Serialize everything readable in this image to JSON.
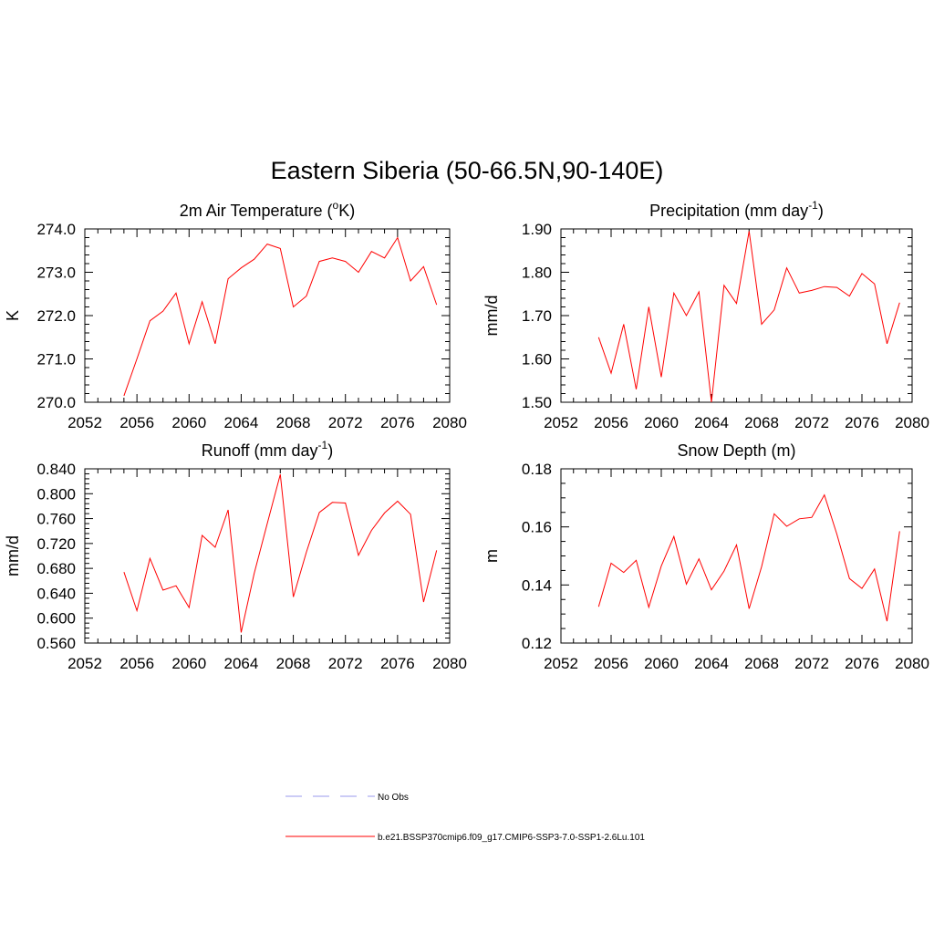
{
  "main_title": "Eastern Siberia (50-66.5N,90-140E)",
  "legend": {
    "items": [
      {
        "label": "No Obs",
        "color": "#9999ee",
        "style": "dashed"
      },
      {
        "label": "b.e21.BSSP370cmip6.f09_g17.CMIP6-SSP3-7.0-SSP1-2.6Lu.101",
        "color": "#ff0000",
        "style": "solid"
      }
    ]
  },
  "chart_data": [
    {
      "type": "line",
      "title": "2m Air Temperature (°K)",
      "ylabel": "K",
      "xlim": [
        2052,
        2080
      ],
      "ylim": [
        270.0,
        274.0
      ],
      "xticks": [
        "2052",
        "2056",
        "2060",
        "2064",
        "2068",
        "2072",
        "2076",
        "2080"
      ],
      "xtick_values": [
        2052,
        2056,
        2060,
        2064,
        2068,
        2072,
        2076,
        2080
      ],
      "yticks": [
        "270.0",
        "271.0",
        "272.0",
        "273.0",
        "274.0"
      ],
      "ytick_values": [
        270,
        271,
        272,
        273,
        274
      ],
      "ymajor_step": 1.0,
      "yminor_step": 0.2,
      "x": [
        2055,
        2056,
        2057,
        2058,
        2059,
        2060,
        2061,
        2062,
        2063,
        2064,
        2065,
        2066,
        2067,
        2068,
        2069,
        2070,
        2071,
        2072,
        2073,
        2074,
        2075,
        2076,
        2077,
        2078,
        2079
      ],
      "series": [
        {
          "color": "#ff0000",
          "values": [
            270.15,
            271.0,
            271.88,
            272.1,
            272.52,
            271.35,
            272.32,
            271.35,
            272.85,
            273.1,
            273.3,
            273.65,
            273.55,
            272.2,
            272.45,
            273.25,
            273.33,
            273.25,
            273.0,
            273.48,
            273.33,
            273.8,
            272.8,
            273.13,
            272.25
          ]
        }
      ]
    },
    {
      "type": "line",
      "title": "Precipitation (mm day-1)",
      "ylabel": "mm/d",
      "xlim": [
        2052,
        2080
      ],
      "ylim": [
        1.5,
        1.9
      ],
      "xticks": [
        "2052",
        "2056",
        "2060",
        "2064",
        "2068",
        "2072",
        "2076",
        "2080"
      ],
      "xtick_values": [
        2052,
        2056,
        2060,
        2064,
        2068,
        2072,
        2076,
        2080
      ],
      "yticks": [
        "1.50",
        "1.60",
        "1.70",
        "1.80",
        "1.90"
      ],
      "ytick_values": [
        1.5,
        1.6,
        1.7,
        1.8,
        1.9
      ],
      "ymajor_step": 0.1,
      "yminor_step": 0.02,
      "x": [
        2055,
        2056,
        2057,
        2058,
        2059,
        2060,
        2061,
        2062,
        2063,
        2064,
        2065,
        2066,
        2067,
        2068,
        2069,
        2070,
        2071,
        2072,
        2073,
        2074,
        2075,
        2076,
        2077,
        2078,
        2079
      ],
      "series": [
        {
          "color": "#ff0000",
          "values": [
            1.65,
            1.567,
            1.68,
            1.53,
            1.72,
            1.558,
            1.752,
            1.7,
            1.755,
            1.5,
            1.77,
            1.728,
            1.895,
            1.68,
            1.713,
            1.81,
            1.752,
            1.758,
            1.767,
            1.765,
            1.745,
            1.797,
            1.773,
            1.635,
            1.73
          ]
        }
      ]
    },
    {
      "type": "line",
      "title": "Runoff (mm day-1)",
      "ylabel": "mm/d",
      "xlim": [
        2052,
        2080
      ],
      "ylim": [
        0.56,
        0.84
      ],
      "xticks": [
        "2052",
        "2056",
        "2060",
        "2064",
        "2068",
        "2072",
        "2076",
        "2080"
      ],
      "xtick_values": [
        2052,
        2056,
        2060,
        2064,
        2068,
        2072,
        2076,
        2080
      ],
      "yticks": [
        "0.560",
        "0.600",
        "0.640",
        "0.680",
        "0.720",
        "0.760",
        "0.800",
        "0.840"
      ],
      "ytick_values": [
        0.56,
        0.6,
        0.64,
        0.68,
        0.72,
        0.76,
        0.8,
        0.84
      ],
      "ymajor_step": 0.04,
      "yminor_step": 0.008,
      "x": [
        2055,
        2056,
        2057,
        2058,
        2059,
        2060,
        2061,
        2062,
        2063,
        2064,
        2065,
        2066,
        2067,
        2068,
        2069,
        2070,
        2071,
        2072,
        2073,
        2074,
        2075,
        2076,
        2077,
        2078,
        2079
      ],
      "series": [
        {
          "color": "#ff0000",
          "values": [
            0.674,
            0.612,
            0.696,
            0.645,
            0.652,
            0.617,
            0.733,
            0.714,
            0.774,
            0.577,
            0.672,
            0.752,
            0.831,
            0.634,
            0.706,
            0.77,
            0.786,
            0.785,
            0.701,
            0.741,
            0.769,
            0.788,
            0.767,
            0.626,
            0.709
          ]
        }
      ]
    },
    {
      "type": "line",
      "title": "Snow Depth (m)",
      "ylabel": "m",
      "xlim": [
        2052,
        2080
      ],
      "ylim": [
        0.12,
        0.18
      ],
      "xticks": [
        "2052",
        "2056",
        "2060",
        "2064",
        "2068",
        "2072",
        "2076",
        "2080"
      ],
      "xtick_values": [
        2052,
        2056,
        2060,
        2064,
        2068,
        2072,
        2076,
        2080
      ],
      "yticks": [
        "0.12",
        "0.14",
        "0.16",
        "0.18"
      ],
      "ytick_values": [
        0.12,
        0.14,
        0.16,
        0.18
      ],
      "ymajor_step": 0.02,
      "yminor_step": 0.005,
      "x": [
        2055,
        2056,
        2057,
        2058,
        2059,
        2060,
        2061,
        2062,
        2063,
        2064,
        2065,
        2066,
        2067,
        2068,
        2069,
        2070,
        2071,
        2072,
        2073,
        2074,
        2075,
        2076,
        2077,
        2078,
        2079
      ],
      "series": [
        {
          "color": "#ff0000",
          "values": [
            0.1325,
            0.1475,
            0.1443,
            0.1485,
            0.1323,
            0.1465,
            0.1567,
            0.1403,
            0.149,
            0.1383,
            0.1448,
            0.1538,
            0.1318,
            0.1463,
            0.1645,
            0.1602,
            0.1628,
            0.1633,
            0.171,
            0.1575,
            0.1422,
            0.1388,
            0.1455,
            0.1275,
            0.1585
          ]
        }
      ]
    }
  ]
}
